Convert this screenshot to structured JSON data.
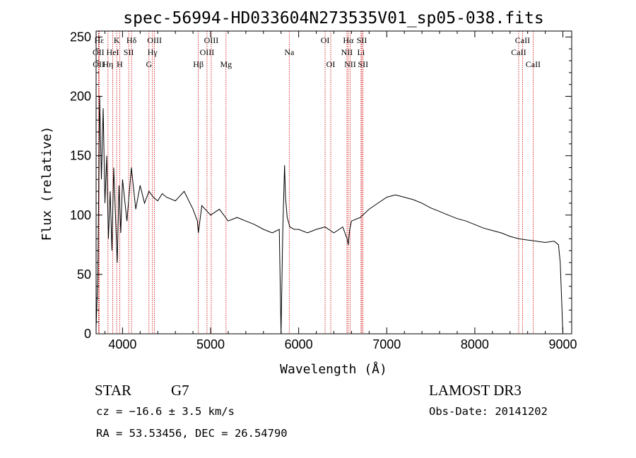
{
  "chart_data": {
    "type": "line",
    "title": "spec-56994-HD033604N273535V01_sp05-038.fits",
    "xlabel": "Wavelength (Å)",
    "ylabel": "Flux (relative)",
    "xlim": [
      3700,
      9100
    ],
    "ylim": [
      0,
      255
    ],
    "xticks": [
      4000,
      5000,
      6000,
      7000,
      8000,
      9000
    ],
    "yticks": [
      0,
      50,
      100,
      150,
      200,
      250
    ],
    "grid": false,
    "legend": "none",
    "series": [
      {
        "x": [
          3700,
          3720,
          3740,
          3760,
          3780,
          3800,
          3820,
          3840,
          3860,
          3880,
          3900,
          3920,
          3940,
          3960,
          3980,
          4000,
          4050,
          4100,
          4150,
          4200,
          4250,
          4300,
          4350,
          4400,
          4450,
          4500,
          4600,
          4700,
          4800,
          4850,
          4861,
          4900,
          5000,
          5100,
          5200,
          5300,
          5400,
          5500,
          5600,
          5700,
          5780,
          5800,
          5820,
          5840,
          5850,
          5870,
          5900,
          5950,
          6000,
          6100,
          6200,
          6300,
          6400,
          6500,
          6550,
          6563,
          6580,
          6600,
          6700,
          6800,
          6900,
          7000,
          7100,
          7200,
          7300,
          7400,
          7500,
          7600,
          7700,
          7800,
          7900,
          8000,
          8100,
          8200,
          8300,
          8400,
          8500,
          8600,
          8700,
          8800,
          8900,
          8950,
          8970,
          8990,
          9000
        ],
        "y": [
          5,
          50,
          200,
          130,
          190,
          110,
          150,
          80,
          120,
          70,
          140,
          100,
          60,
          125,
          85,
          130,
          95,
          140,
          105,
          125,
          110,
          120,
          115,
          112,
          118,
          115,
          112,
          120,
          105,
          95,
          85,
          108,
          100,
          105,
          95,
          98,
          95,
          92,
          88,
          85,
          88,
          0,
          88,
          142,
          115,
          98,
          90,
          88,
          88,
          85,
          88,
          90,
          85,
          90,
          80,
          75,
          88,
          95,
          98,
          105,
          110,
          115,
          117,
          115,
          113,
          110,
          106,
          103,
          100,
          97,
          95,
          92,
          89,
          87,
          85,
          82,
          80,
          79,
          78,
          77,
          78,
          75,
          60,
          20,
          0
        ]
      }
    ],
    "spectral_lines": [
      {
        "label": "Hε",
        "wl": 3735,
        "row": 1
      },
      {
        "label": "K",
        "wl": 3934,
        "row": 1
      },
      {
        "label": "Hδ",
        "wl": 4102,
        "row": 1
      },
      {
        "label": "OIII",
        "wl": 4363,
        "row": 1
      },
      {
        "label": "OIII",
        "wl": 5007,
        "row": 1
      },
      {
        "label": "OI",
        "wl": 6300,
        "row": 1
      },
      {
        "label": "Hα",
        "wl": 6563,
        "row": 1
      },
      {
        "label": "SII",
        "wl": 6717,
        "row": 1
      },
      {
        "label": "CaII",
        "wl": 8542,
        "row": 1
      },
      {
        "label": "OII",
        "wl": 3727,
        "row": 2
      },
      {
        "label": "HeI",
        "wl": 3889,
        "row": 2
      },
      {
        "label": "SII",
        "wl": 4070,
        "row": 2
      },
      {
        "label": "Hγ",
        "wl": 4340,
        "row": 2
      },
      {
        "label": "OIII",
        "wl": 4959,
        "row": 2
      },
      {
        "label": "Na",
        "wl": 5893,
        "row": 2
      },
      {
        "label": "NII",
        "wl": 6548,
        "row": 2
      },
      {
        "label": "Li",
        "wl": 6708,
        "row": 2
      },
      {
        "label": "CaII",
        "wl": 8498,
        "row": 2
      },
      {
        "label": "OII",
        "wl": 3729,
        "row": 3
      },
      {
        "label": "Hη",
        "wl": 3835,
        "row": 3
      },
      {
        "label": "H",
        "wl": 3968,
        "row": 3
      },
      {
        "label": "G",
        "wl": 4300,
        "row": 3
      },
      {
        "label": "Hβ",
        "wl": 4861,
        "row": 3
      },
      {
        "label": "Mg",
        "wl": 5175,
        "row": 3
      },
      {
        "label": "OI",
        "wl": 6364,
        "row": 3
      },
      {
        "label": "NII",
        "wl": 6584,
        "row": 3
      },
      {
        "label": "SII",
        "wl": 6731,
        "row": 3
      },
      {
        "label": "CaII",
        "wl": 8662,
        "row": 3
      }
    ],
    "colors": {
      "spectrum": "#000000",
      "line_marker": "#cc0000",
      "background": "#ffffff"
    }
  },
  "info": {
    "object_class": "STAR",
    "subclass": "G7",
    "survey": "LAMOST DR3",
    "redshift": "cz = −16.6 ± 3.5 km/s",
    "obs_date": "Obs-Date: 20141202",
    "coords": "RA =  53.53456, DEC =  26.54790"
  }
}
